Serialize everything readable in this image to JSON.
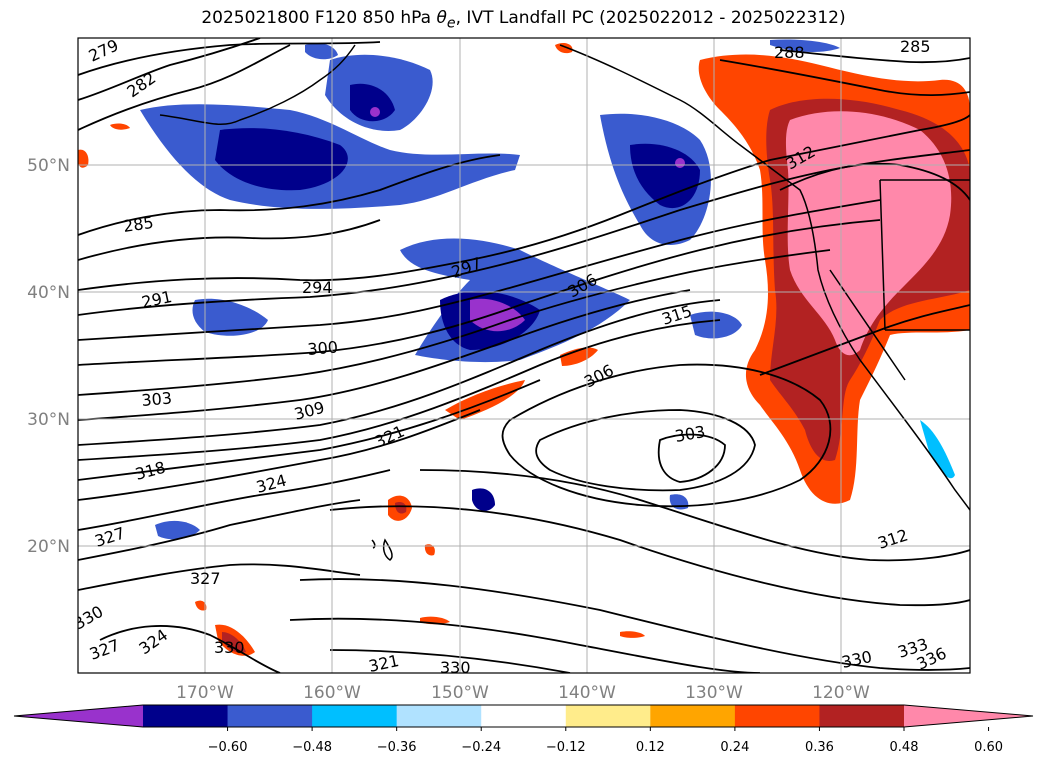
{
  "title": {
    "prefix": "2025021800 F120 850 hPa ",
    "symbol": "θ",
    "subscript": "e",
    "suffix": ", IVT Landfall PC (2025022012 - 2025022312)"
  },
  "map": {
    "lat_labels": [
      "50°N",
      "40°N",
      "30°N",
      "20°N"
    ],
    "lon_labels": [
      "170°W",
      "160°W",
      "150°W",
      "140°W",
      "130°W",
      "120°W"
    ],
    "contour_labels": [
      "279",
      "282",
      "285",
      "288",
      "285",
      "291",
      "294",
      "297",
      "300",
      "303",
      "306",
      "309",
      "312",
      "315",
      "318",
      "321",
      "324",
      "327",
      "327",
      "330",
      "330",
      "333",
      "336",
      "303",
      "306",
      "312",
      "330",
      "327",
      "324",
      "330",
      "321"
    ],
    "colors": {
      "land_outline": "#000000",
      "grid": "#b0b0b0",
      "contour": "#000000"
    }
  },
  "colorbar": {
    "tick_labels": [
      "−0.60",
      "−0.48",
      "−0.36",
      "−0.24",
      "−0.12",
      "0.12",
      "0.24",
      "0.36",
      "0.48",
      "0.60"
    ],
    "colors": [
      "#9932cc",
      "#00008b",
      "#3a5bcf",
      "#00bfff",
      "#b0e2ff",
      "#ffffff",
      "#ffec8b",
      "#ffa500",
      "#ff4500",
      "#b22222",
      "#ff88aa"
    ]
  }
}
